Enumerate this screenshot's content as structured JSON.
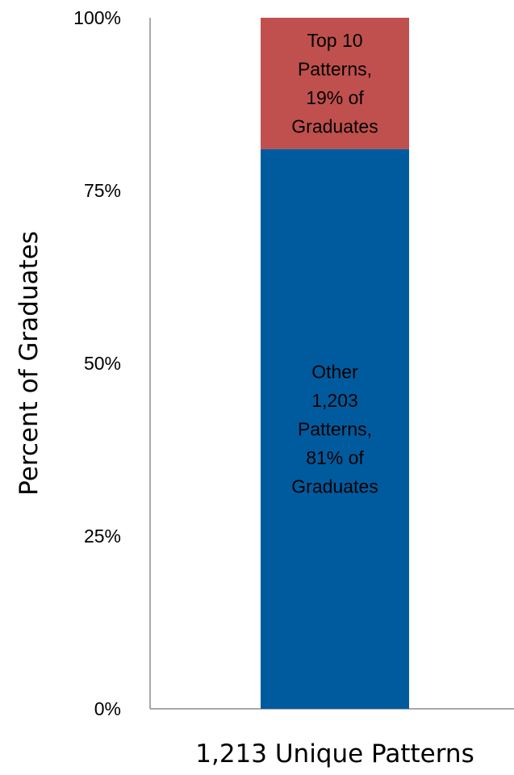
{
  "chart_data": {
    "type": "bar",
    "stacked": true,
    "categories": [
      "1,213 Unique Patterns"
    ],
    "series": [
      {
        "name": "Other 1,203 Patterns, 81% of Graduates",
        "values": [
          81
        ],
        "color": "#005b9e",
        "label_lines": [
          "Other",
          "1,203",
          "Patterns,",
          "81% of",
          "Graduates"
        ]
      },
      {
        "name": "Top 10 Patterns, 19% of Graduates",
        "values": [
          19
        ],
        "color": "#c0504d",
        "label_lines": [
          "Top 10",
          "Patterns,",
          "19% of",
          "Graduates"
        ]
      }
    ],
    "ylabel": "Percent of Graduates",
    "xlabel": "1,213 Unique Patterns",
    "ylim": [
      0,
      100
    ],
    "yticks": [
      {
        "value": 0,
        "label": "0%"
      },
      {
        "value": 25,
        "label": "25%"
      },
      {
        "value": 50,
        "label": "50%"
      },
      {
        "value": 75,
        "label": "75%"
      },
      {
        "value": 100,
        "label": "100%"
      }
    ],
    "grid": false,
    "legend": "none"
  }
}
